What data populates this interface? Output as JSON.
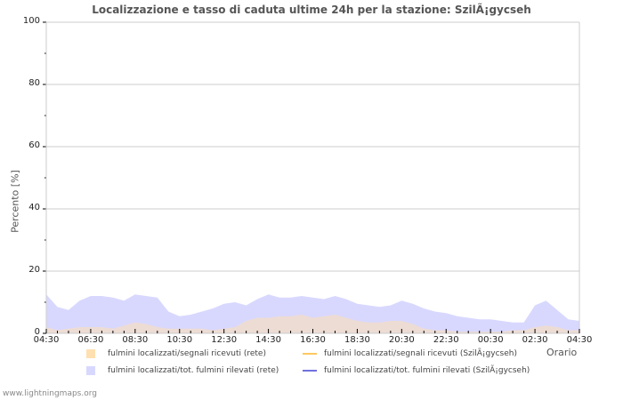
{
  "chart_data": {
    "type": "area",
    "title": "Localizzazione e tasso di caduta ultime 24h per la stazione: SzilÃ¡gycseh",
    "xlabel": "Orario",
    "ylabel": "Percento   [%]",
    "ylim": [
      0,
      100
    ],
    "yticks": [
      "0",
      "20",
      "40",
      "60",
      "80",
      "100"
    ],
    "xticks": [
      "04:30",
      "06:30",
      "08:30",
      "10:30",
      "12:30",
      "14:30",
      "16:30",
      "18:30",
      "20:30",
      "22:30",
      "00:30",
      "02:30",
      "04:30"
    ],
    "grid": true,
    "x": [
      "04:30",
      "05:00",
      "05:30",
      "06:00",
      "06:30",
      "07:00",
      "07:30",
      "08:00",
      "08:30",
      "09:00",
      "09:30",
      "10:00",
      "10:30",
      "11:00",
      "11:30",
      "12:00",
      "12:30",
      "13:00",
      "13:30",
      "14:00",
      "14:30",
      "15:00",
      "15:30",
      "16:00",
      "16:30",
      "17:00",
      "17:30",
      "18:00",
      "18:30",
      "19:00",
      "19:30",
      "20:00",
      "20:30",
      "21:00",
      "21:30",
      "22:00",
      "22:30",
      "23:00",
      "23:30",
      "00:00",
      "00:30",
      "01:00",
      "01:30",
      "02:00",
      "02:30",
      "03:00",
      "03:30",
      "04:00",
      "04:30"
    ],
    "series": [
      {
        "name": "fulmini localizzati/tot. fulmini rilevati (rete)",
        "color": "#d8d8ff",
        "values": [
          12.5,
          8.5,
          7.5,
          10.5,
          12,
          12,
          11.5,
          10.5,
          12.5,
          12,
          11.5,
          7,
          5.5,
          6,
          7,
          8,
          9.5,
          10,
          9,
          11,
          12.5,
          11.5,
          11.5,
          12,
          11.5,
          11,
          12,
          11,
          9.5,
          9,
          8.5,
          9,
          10.5,
          9.5,
          8,
          7,
          6.5,
          5.5,
          5,
          4.5,
          4.5,
          4,
          3.5,
          3.5,
          9,
          10.5,
          7.5,
          4.5,
          4
        ]
      },
      {
        "name": "fulmini localizzati/segnali ricevuti (rete)",
        "color": "#ffe0b0",
        "values": [
          2,
          1,
          1.5,
          2,
          2,
          2,
          1.5,
          2.5,
          3.5,
          3,
          2,
          1.5,
          1.5,
          1.5,
          1.5,
          1,
          1.5,
          2,
          4,
          5,
          5,
          5.5,
          5.5,
          6,
          5,
          5.5,
          6,
          5,
          4,
          3.5,
          3.5,
          4,
          4,
          3,
          1.5,
          1,
          1,
          0.5,
          0.5,
          0.5,
          0.5,
          0.5,
          1,
          1,
          2,
          2.5,
          2,
          1,
          1
        ]
      },
      {
        "name": "fulmini localizzati/segnali ricevuti (SzilÃ¡gycseh)",
        "color": "#ffc860",
        "values": []
      },
      {
        "name": "fulmini localizzati/tot. fulmini rilevati (SzilÃ¡gycseh)",
        "color": "#7070e0",
        "values": []
      }
    ],
    "legend_position": "bottom"
  },
  "legend": [
    {
      "label": "fulmini localizzati/segnali ricevuti (rete)",
      "kind": "area",
      "color": "#ffe0b0"
    },
    {
      "label": "fulmini localizzati/segnali ricevuti (SzilÃ¡gycseh)",
      "kind": "line",
      "color": "#ffc860"
    },
    {
      "label": "fulmini localizzati/tot. fulmini rilevati (rete)",
      "kind": "area",
      "color": "#d8d8ff"
    },
    {
      "label": "fulmini localizzati/tot. fulmini rilevati (SzilÃ¡gycseh)",
      "kind": "line",
      "color": "#7070e0"
    }
  ],
  "footer": "www.lightningmaps.org"
}
